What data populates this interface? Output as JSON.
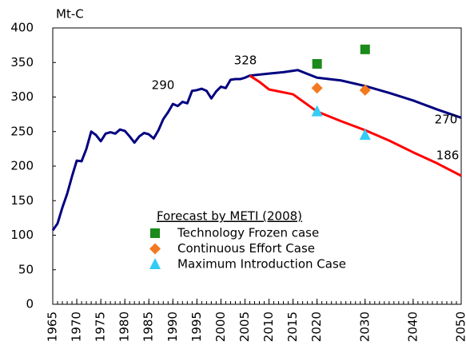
{
  "chart_data": {
    "type": "line",
    "y_label": "Mt-C",
    "xlim": [
      1965,
      2050
    ],
    "ylim": [
      0,
      400
    ],
    "xticks": [
      1965,
      1970,
      1975,
      1980,
      1985,
      1990,
      1995,
      2000,
      2005,
      2010,
      2015,
      2020,
      2030,
      2040,
      2050
    ],
    "yticks": [
      0,
      50,
      100,
      150,
      200,
      250,
      300,
      350,
      400
    ],
    "minor_ticks": true,
    "grid": false,
    "series": [
      {
        "color": "#000080",
        "type": "line",
        "x": [
          1965,
          1966,
          1967,
          1968,
          1969,
          1970,
          1971,
          1972,
          1973,
          1974,
          1975,
          1976,
          1977,
          1978,
          1979,
          1980,
          1981,
          1982,
          1983,
          1984,
          1985,
          1986,
          1987,
          1988,
          1989,
          1990,
          1991,
          1992,
          1993,
          1994,
          1995,
          1996,
          1997,
          1998,
          1999,
          2000,
          2001,
          2002,
          2003,
          2004,
          2005,
          2006,
          2010,
          2013,
          2016,
          2020,
          2025,
          2030,
          2035,
          2040,
          2045,
          2050
        ],
        "values": [
          107,
          117,
          140,
          160,
          185,
          208,
          207,
          225,
          250,
          245,
          236,
          247,
          249,
          247,
          253,
          251,
          243,
          234,
          243,
          248,
          246,
          240,
          252,
          268,
          278,
          290,
          287,
          293,
          291,
          309,
          310,
          312,
          309,
          298,
          308,
          315,
          313,
          325,
          326,
          326,
          328,
          331,
          334,
          336,
          339,
          328,
          324,
          316,
          306,
          295,
          282,
          270
        ]
      },
      {
        "color": "#ff0000",
        "type": "line",
        "x": [
          2006,
          2008,
          2010,
          2015,
          2020,
          2025,
          2030,
          2035,
          2040,
          2045,
          2050
        ],
        "values": [
          331,
          322,
          311,
          304,
          279,
          265,
          252,
          237,
          220,
          204,
          186
        ]
      },
      {
        "name": "Technology Frozen case",
        "color": "#1a8a1a",
        "type": "scatter",
        "marker": "square",
        "x": [
          2020,
          2030
        ],
        "values": [
          348,
          369
        ]
      },
      {
        "name": "Continuous Effort Case",
        "color": "#f47920",
        "type": "scatter",
        "marker": "diamond",
        "x": [
          2020,
          2030
        ],
        "values": [
          313,
          310
        ]
      },
      {
        "name": "Maximum Introduction Case",
        "color": "#33ccf5",
        "type": "scatter",
        "marker": "triangle",
        "x": [
          2020,
          2030
        ],
        "values": [
          279,
          245
        ]
      }
    ],
    "legend_title": "Forecast by METI (2008)",
    "annotations": [
      "290",
      "328",
      "270",
      "186"
    ]
  }
}
